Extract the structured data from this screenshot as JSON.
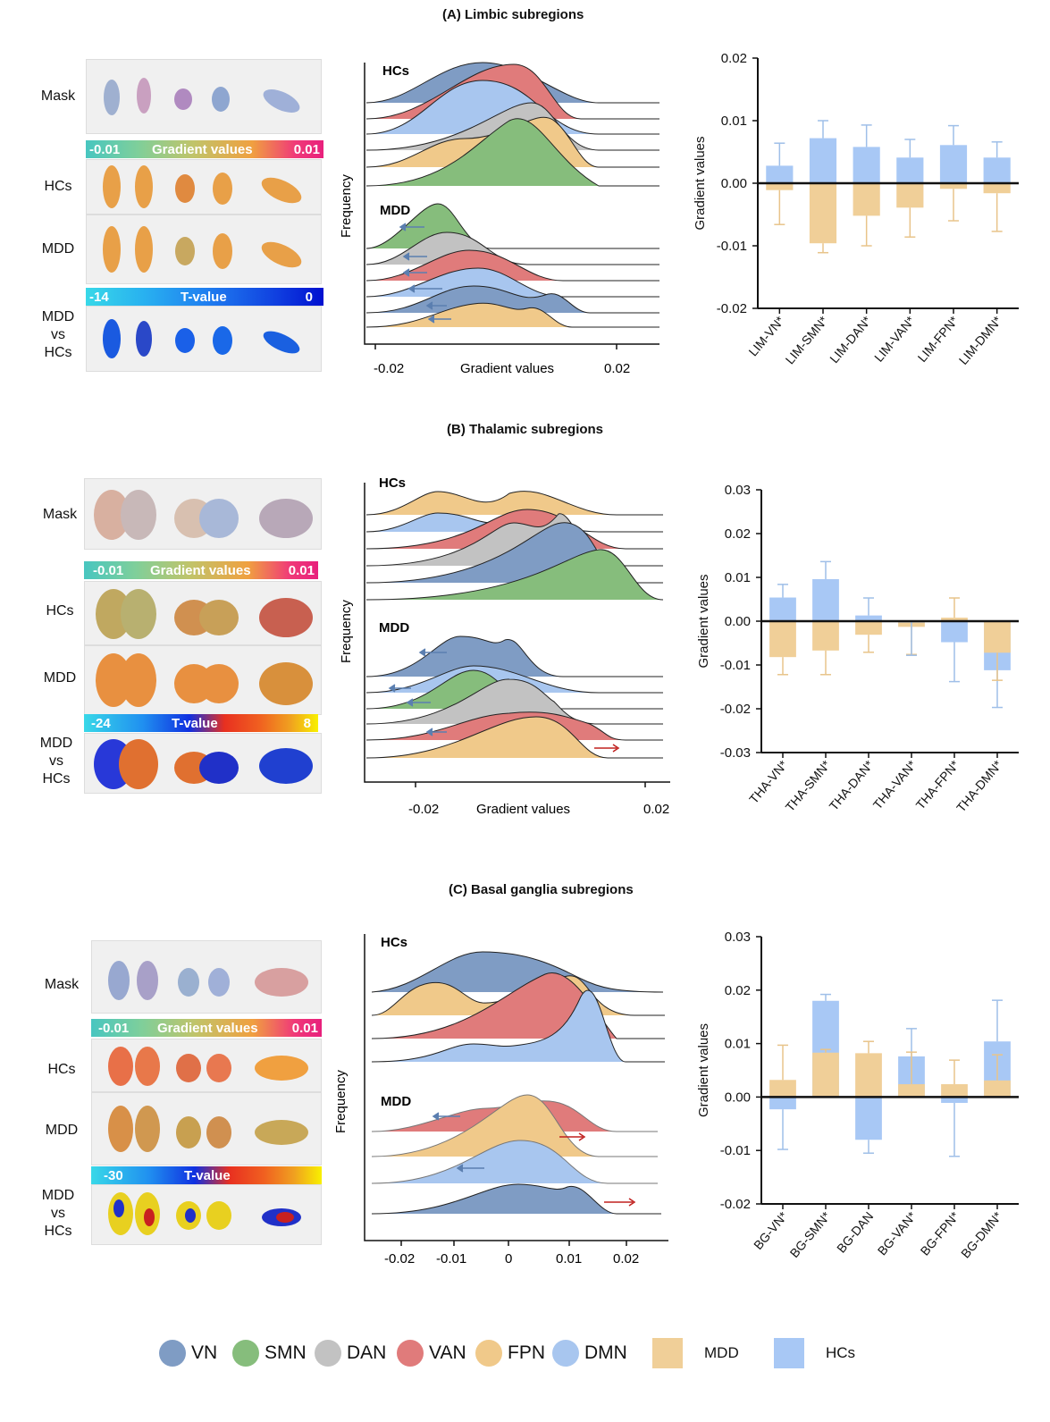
{
  "panels": [
    {
      "title": "(A) Limbic subregions",
      "row_labels": {
        "mask": "Mask",
        "hcs": "HCs",
        "mdd": "MDD",
        "vs": [
          "MDD",
          "vs",
          "HCs"
        ]
      },
      "gradient_bar": {
        "min": "-0.01",
        "label": "Gradient values",
        "max": "0.01"
      },
      "t_bar": {
        "min": "-14",
        "label": "T-value",
        "max": "0"
      },
      "ridge": {
        "hcs_label": "HCs",
        "mdd_label": "MDD",
        "ylabel": "Frequency",
        "xlabel": "Gradient values",
        "xticks": [
          "-0.02",
          "0.02"
        ]
      },
      "chart_data": {
        "type": "bar",
        "categories": [
          "LIM-VN*",
          "LIM-SMN*",
          "LIM-DAN*",
          "LIM-VAN*",
          "LIM-FPN*",
          "LIM-DMN*"
        ],
        "series": [
          {
            "name": "HCs",
            "values": [
              0.0028,
              0.0072,
              0.0058,
              0.0041,
              0.0061,
              0.0041
            ],
            "err": [
              0.0036,
              0.0028,
              0.0035,
              0.0029,
              0.0031,
              0.0025
            ]
          },
          {
            "name": "MDD",
            "values": [
              -0.0011,
              -0.0096,
              -0.0052,
              -0.0039,
              -0.0009,
              -0.0016
            ],
            "err": [
              0.0055,
              0.0015,
              0.0048,
              0.0047,
              0.0051,
              0.0061
            ]
          }
        ],
        "ylabel": "Gradient values",
        "ylim": [
          -0.02,
          0.02
        ],
        "yticks": [
          "0.02",
          "0.01",
          "0.00",
          "-0.01",
          "-0.02"
        ]
      }
    },
    {
      "title": "(B) Thalamic subregions",
      "row_labels": {
        "mask": "Mask",
        "hcs": "HCs",
        "mdd": "MDD",
        "vs": [
          "MDD",
          "vs",
          "HCs"
        ]
      },
      "gradient_bar": {
        "min": "-0.01",
        "label": "Gradient values",
        "max": "0.01"
      },
      "t_bar": {
        "min": "-24",
        "label": "T-value",
        "max": "8"
      },
      "ridge": {
        "hcs_label": "HCs",
        "mdd_label": "MDD",
        "ylabel": "Frequency",
        "xlabel": "Gradient values",
        "xticks": [
          "-0.02",
          "0.02"
        ]
      },
      "chart_data": {
        "type": "bar",
        "categories": [
          "THA-VN*",
          "THA-SMN*",
          "THA-DAN*",
          "THA-VAN*",
          "THA-FPN*",
          "THA-DMN*"
        ],
        "series": [
          {
            "name": "HCs",
            "values": [
              0.0054,
              0.0096,
              0.0013,
              -0.0003,
              -0.0048,
              -0.0112
            ],
            "err": [
              0.003,
              0.004,
              0.004,
              0.0075,
              0.009,
              0.0085
            ]
          },
          {
            "name": "MDD",
            "values": [
              -0.0082,
              -0.0067,
              -0.0031,
              -0.0013,
              0.0008,
              -0.0072
            ],
            "err": [
              0.004,
              0.0055,
              0.004,
              0.0063,
              0.0045,
              0.0063
            ]
          }
        ],
        "ylabel": "Gradient values",
        "ylim": [
          -0.03,
          0.03
        ],
        "yticks": [
          "0.03",
          "0.02",
          "0.01",
          "0.00",
          "-0.01",
          "-0.02",
          "-0.03"
        ]
      }
    },
    {
      "title": "(C) Basal ganglia subregions",
      "row_labels": {
        "mask": "Mask",
        "hcs": "HCs",
        "mdd": "MDD",
        "vs": [
          "MDD",
          "vs",
          "HCs"
        ]
      },
      "gradient_bar": {
        "min": "-0.01",
        "label": "Gradient values",
        "max": "0.01"
      },
      "t_bar": {
        "min": "-30",
        "label": "T-value",
        "max": ""
      },
      "ridge": {
        "hcs_label": "HCs",
        "mdd_label": "MDD",
        "ylabel": "Frequency",
        "xlabel": "",
        "xticks": [
          "-0.02",
          "-0.01",
          "0",
          "0.01",
          "0.02"
        ]
      },
      "chart_data": {
        "type": "bar",
        "categories": [
          "BG-VN*",
          "BG-SMN*",
          "BG-DAN",
          "BG-VAN*",
          "BG-FPN*",
          "BG-DMN*"
        ],
        "series": [
          {
            "name": "HCs",
            "values": [
              -0.0023,
              0.018,
              -0.008,
              0.0076,
              -0.0011,
              0.0104
            ],
            "err": [
              0.0075,
              0.0012,
              0.0025,
              0.0052,
              0.01,
              0.0077
            ]
          },
          {
            "name": "MDD",
            "values": [
              0.0032,
              0.0083,
              0.0082,
              0.0024,
              0.0024,
              0.0031
            ],
            "err": [
              0.0065,
              0.0006,
              0.0022,
              0.006,
              0.0045,
              0.0048
            ]
          }
        ],
        "ylabel": "Gradient values",
        "ylim": [
          -0.02,
          0.03
        ],
        "yticks": [
          "0.03",
          "0.02",
          "0.01",
          "0.00",
          "-0.01",
          "-0.02"
        ]
      }
    }
  ],
  "legend": {
    "networks": [
      {
        "label": "VN",
        "color": "#7f9cc4"
      },
      {
        "label": "SMN",
        "color": "#86bd7c"
      },
      {
        "label": "DAN",
        "color": "#c2c2c2"
      },
      {
        "label": "VAN",
        "color": "#e07b7b"
      },
      {
        "label": "FPN",
        "color": "#f0c98a"
      },
      {
        "label": "DMN",
        "color": "#a8c6ef"
      }
    ],
    "groups": [
      {
        "label": "MDD",
        "color": "#f0cf98"
      },
      {
        "label": "HCs",
        "color": "#a8c8f5"
      }
    ]
  },
  "colors": {
    "hcs": "#a8c8f5",
    "mdd": "#f0cf98",
    "err_hcs": "#9fbfe8",
    "err_mdd": "#e8c48a",
    "arrow_blue": "#5b7fb0",
    "arrow_red": "#c0201e"
  }
}
